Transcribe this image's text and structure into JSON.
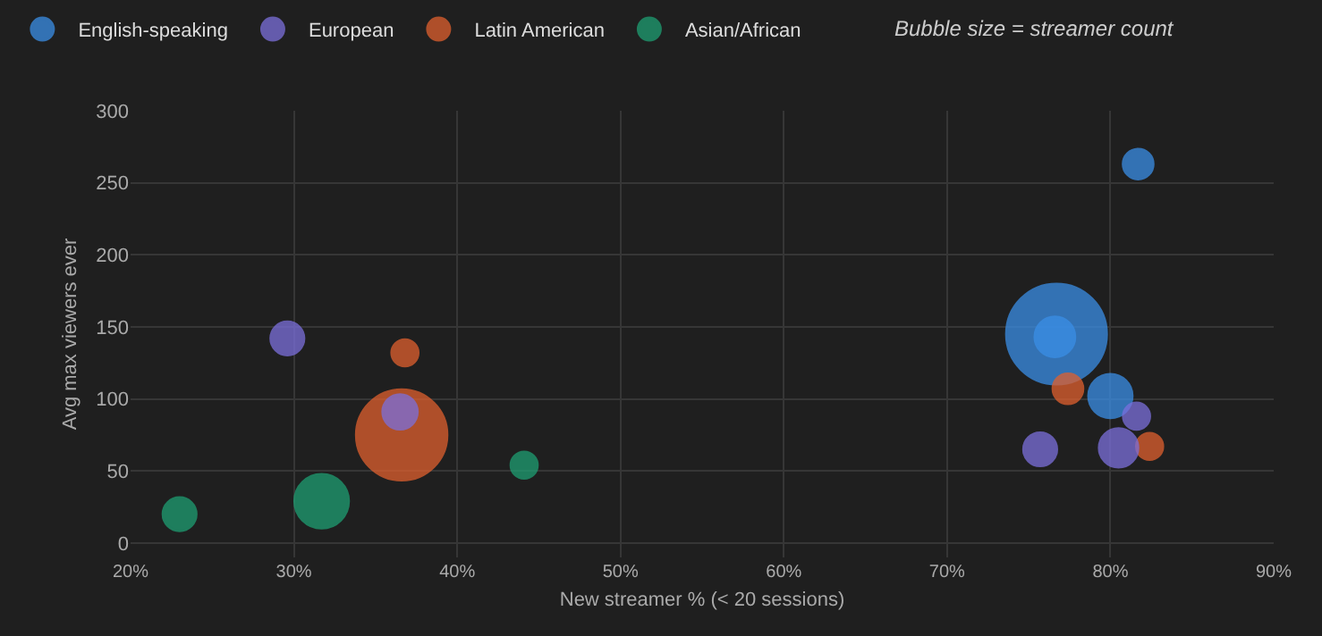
{
  "chart_data": {
    "type": "bubble",
    "xlabel": "New streamer % (< 20 sessions)",
    "ylabel": "Avg max viewers ever",
    "annotations": [
      "Bubble size = streamer count"
    ],
    "xlim": [
      20,
      90
    ],
    "xticks": [
      {
        "value": 20,
        "label": "20%"
      },
      {
        "value": 30,
        "label": "30%"
      },
      {
        "value": 40,
        "label": "40%"
      },
      {
        "value": 50,
        "label": "50%"
      },
      {
        "value": 60,
        "label": "60%"
      },
      {
        "value": 70,
        "label": "70%"
      },
      {
        "value": 80,
        "label": "80%"
      },
      {
        "value": 90,
        "label": "90%"
      }
    ],
    "ylim": [
      -10,
      300
    ],
    "yticks": [
      0,
      50,
      100,
      150,
      200,
      250,
      300
    ],
    "grid": true,
    "legend": "top left",
    "series": [
      {
        "name": "English-speaking",
        "color": "#3a8ee6",
        "x": [
          81.7,
          76.7,
          76.6,
          80.0
        ],
        "values": [
          263,
          145,
          143,
          102
        ],
        "sizes": [
          0.09,
          1,
          0.16,
          0.19
        ]
      },
      {
        "name": "European",
        "color": "#7b6fdc",
        "x": [
          29.6,
          36.5,
          81.6,
          75.7,
          80.5
        ],
        "values": [
          142,
          91,
          88,
          65,
          66
        ],
        "sizes": [
          0.11,
          0.12,
          0.07,
          0.11,
          0.15
        ]
      },
      {
        "name": "Latin American",
        "color": "#e0602e",
        "x": [
          36.8,
          36.6,
          77.4,
          82.4
        ],
        "values": [
          132,
          75,
          107,
          67
        ],
        "sizes": [
          0.07,
          0.82,
          0.09,
          0.07
        ]
      },
      {
        "name": "Asian/African",
        "color": "#1e9e72",
        "x": [
          44.1,
          31.7,
          23.0
        ],
        "values": [
          54,
          29,
          20
        ],
        "sizes": [
          0.07,
          0.29,
          0.11
        ]
      }
    ]
  }
}
